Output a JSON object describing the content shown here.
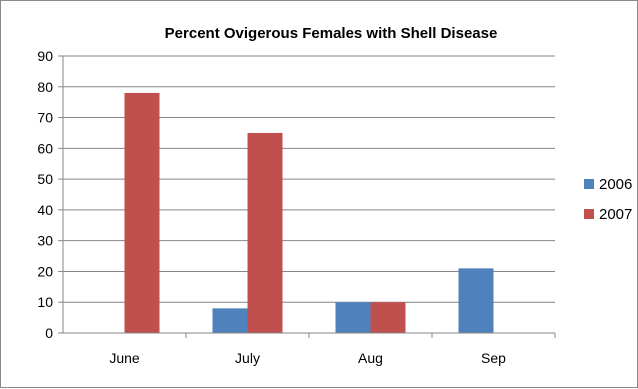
{
  "chart_data": {
    "type": "bar",
    "title": "Percent Ovigerous Females with Shell Disease",
    "xlabel": "",
    "ylabel": "",
    "categories": [
      "June",
      "July",
      "Aug",
      "Sep"
    ],
    "series": [
      {
        "name": "2006",
        "color": "#4f81bd",
        "values": [
          0,
          8,
          10,
          21
        ]
      },
      {
        "name": "2007",
        "color": "#c0504d",
        "values": [
          78,
          65,
          10,
          0
        ]
      }
    ],
    "ylim": [
      0,
      90
    ],
    "yticks": [
      0,
      10,
      20,
      30,
      40,
      50,
      60,
      70,
      80,
      90
    ],
    "grid": true,
    "legend_position": "right"
  }
}
